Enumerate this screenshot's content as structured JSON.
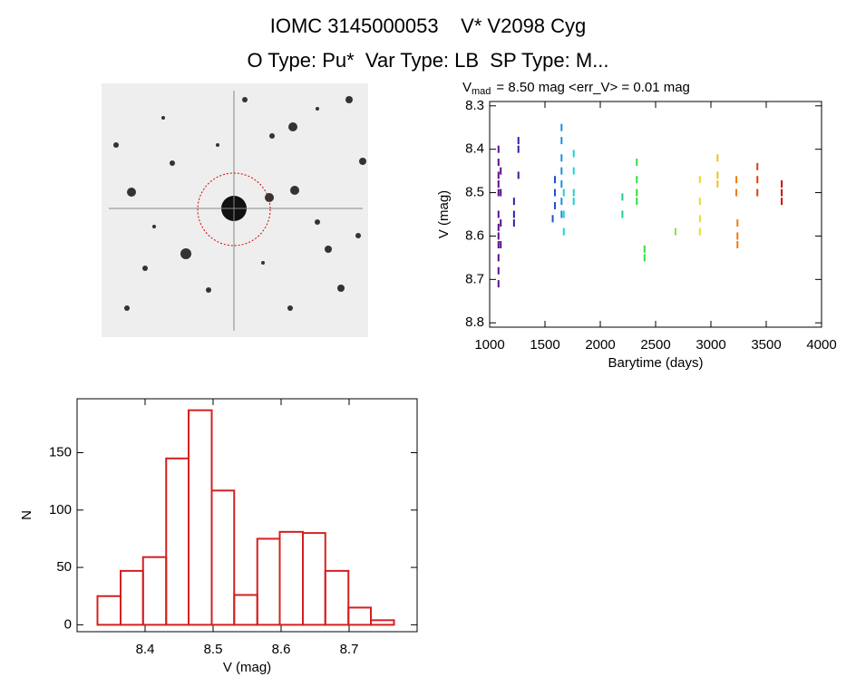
{
  "header": {
    "title": "IOMC 3145000053    V* V2098 Cyg",
    "subtitle": "O Type: Pu*  Var Type: LB  SP Type: M..."
  },
  "chart_data": [
    {
      "type": "scatter",
      "title_symbol": "V",
      "title_subscript": "mad",
      "title": "= 8.50 mag <err_V> = 0.01 mag",
      "x_label": "Barytime (days)",
      "y_label": "V (mag)",
      "xlim": [
        1000,
        4000
      ],
      "xticks": [
        1000,
        1500,
        2000,
        2500,
        3000,
        3500,
        4000
      ],
      "ylim": [
        8.29,
        8.81
      ],
      "y_inverted": true,
      "yticks": [
        8.3,
        8.4,
        8.5,
        8.6,
        8.7,
        8.8
      ],
      "x": [
        1080,
        1080,
        1080,
        1080,
        1080,
        1080,
        1080,
        1080,
        1080,
        1080,
        1080,
        1080,
        1100,
        1100,
        1100,
        1100,
        1220,
        1220,
        1220,
        1260,
        1260,
        1260,
        1570,
        1590,
        1590,
        1590,
        1650,
        1650,
        1650,
        1650,
        1650,
        1650,
        1650,
        1670,
        1670,
        1670,
        1760,
        1760,
        1760,
        1760,
        2200,
        2200,
        2330,
        2330,
        2330,
        2330,
        2400,
        2400,
        2680,
        2900,
        2900,
        2900,
        2900,
        3060,
        3060,
        3060,
        3230,
        3230,
        3240,
        3240,
        3240,
        3420,
        3420,
        3420,
        3640,
        3640,
        3640
      ],
      "values": [
        8.4,
        8.43,
        8.46,
        8.48,
        8.5,
        8.55,
        8.58,
        8.6,
        8.62,
        8.65,
        8.68,
        8.71,
        8.45,
        8.5,
        8.57,
        8.62,
        8.52,
        8.55,
        8.57,
        8.38,
        8.4,
        8.46,
        8.56,
        8.47,
        8.5,
        8.53,
        8.35,
        8.38,
        8.42,
        8.45,
        8.48,
        8.52,
        8.55,
        8.5,
        8.55,
        8.59,
        8.41,
        8.45,
        8.5,
        8.52,
        8.51,
        8.55,
        8.43,
        8.47,
        8.5,
        8.52,
        8.63,
        8.65,
        8.59,
        8.47,
        8.52,
        8.56,
        8.59,
        8.42,
        8.46,
        8.48,
        8.47,
        8.5,
        8.57,
        8.6,
        8.62,
        8.44,
        8.47,
        8.5,
        8.48,
        8.5,
        8.52
      ],
      "colors": [
        "#5a0f8a",
        "#5a0f8a",
        "#5a0f8a",
        "#5a0f8a",
        "#5a0f8a",
        "#5a0f8a",
        "#5a0f8a",
        "#5a0f8a",
        "#5a0f8a",
        "#5a0f8a",
        "#5a0f8a",
        "#5a0f8a",
        "#5a0f8a",
        "#5a0f8a",
        "#5a0f8a",
        "#5a0f8a",
        "#3a1aa0",
        "#3a1aa0",
        "#3a1aa0",
        "#3a1aa0",
        "#3a1aa0",
        "#3a1aa0",
        "#1f4fd0",
        "#1f4fd0",
        "#1f4fd0",
        "#1f4fd0",
        "#1a8fe0",
        "#1a8fe0",
        "#1a8fe0",
        "#1a8fe0",
        "#1a8fe0",
        "#1a8fe0",
        "#1a8fe0",
        "#20d0d0",
        "#20d0d0",
        "#20d0d0",
        "#20d0d0",
        "#20d0d0",
        "#20d0d0",
        "#20d0d0",
        "#20c8a0",
        "#20c8a0",
        "#2ee040",
        "#2ee040",
        "#2ee040",
        "#2ee040",
        "#2ee040",
        "#2ee040",
        "#90e040",
        "#e0e030",
        "#e0e030",
        "#e0e030",
        "#e0e030",
        "#f0c020",
        "#f0c020",
        "#f0c020",
        "#f07a10",
        "#f07a10",
        "#f07a10",
        "#f07a10",
        "#f07a10",
        "#e03a10",
        "#e03a10",
        "#e03a10",
        "#cc1010",
        "#cc1010",
        "#cc1010"
      ]
    },
    {
      "type": "histogram",
      "x_label": "V (mag)",
      "y_label": "N",
      "color": "#d42020",
      "xlim": [
        8.3,
        8.8
      ],
      "xticks": [
        8.4,
        8.5,
        8.6,
        8.7
      ],
      "ylim": [
        -6,
        197
      ],
      "yticks": [
        0,
        50,
        100,
        150
      ],
      "bins": [
        8.33,
        8.364,
        8.397,
        8.431,
        8.464,
        8.498,
        8.531,
        8.565,
        8.598,
        8.632,
        8.665,
        8.699,
        8.732,
        8.766
      ],
      "values": [
        25,
        47,
        59,
        145,
        187,
        117,
        26,
        75,
        81,
        80,
        47,
        15,
        4
      ]
    }
  ]
}
